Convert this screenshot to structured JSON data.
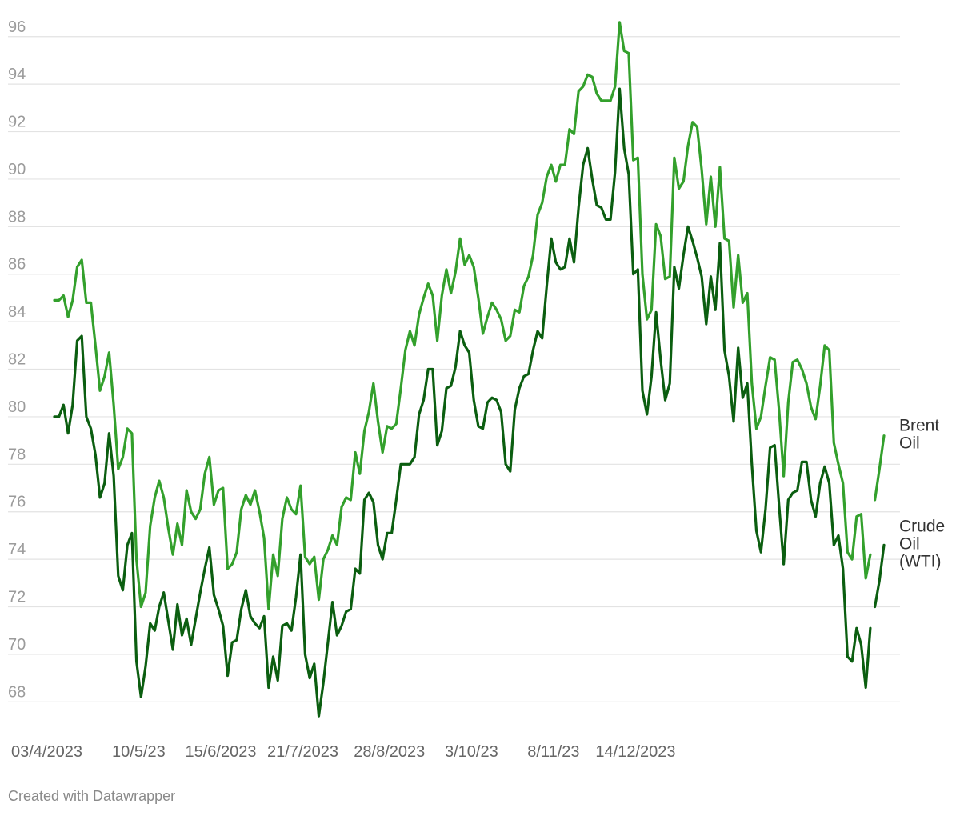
{
  "chart_data": {
    "type": "line",
    "title": "",
    "xlabel": "",
    "ylabel": "",
    "ylim": [
      67,
      96.8
    ],
    "y_ticks": [
      68,
      70,
      72,
      74,
      76,
      78,
      80,
      82,
      84,
      86,
      88,
      90,
      92,
      94,
      96
    ],
    "x_range": [
      "2023-04-03",
      "2024-04-01"
    ],
    "x_ticks": [
      {
        "date": "2023-04-03",
        "label": "03/4/2023"
      },
      {
        "date": "2023-05-10",
        "label": "10/5/23"
      },
      {
        "date": "2023-06-15",
        "label": "15/6/2023"
      },
      {
        "date": "2023-07-21",
        "label": "21/7/2023"
      },
      {
        "date": "2023-08-28",
        "label": "28/8/2023"
      },
      {
        "date": "2023-10-03",
        "label": "3/10/23"
      },
      {
        "date": "2023-11-08",
        "label": "8/11/23"
      },
      {
        "date": "2023-12-14",
        "label": "14/12/2023"
      }
    ],
    "grid": true,
    "legend": "inline labels at line ends (right)",
    "series": [
      {
        "name": "Brent Oil",
        "label_lines": [
          "Brent",
          "Oil"
        ],
        "color": "#33a02c",
        "points": [
          [
            "2023-04-03",
            84.9
          ],
          [
            "2023-04-05",
            84.9
          ],
          [
            "2023-04-07",
            85.1
          ],
          [
            "2023-04-09",
            84.2
          ],
          [
            "2023-04-11",
            84.9
          ],
          [
            "2023-04-13",
            86.3
          ],
          [
            "2023-04-15",
            86.6
          ],
          [
            "2023-04-17",
            84.8
          ],
          [
            "2023-04-19",
            84.8
          ],
          [
            "2023-04-21",
            83.0
          ],
          [
            "2023-04-23",
            81.1
          ],
          [
            "2023-04-25",
            81.7
          ],
          [
            "2023-04-27",
            82.7
          ],
          [
            "2023-04-29",
            80.5
          ],
          [
            "2023-05-01",
            77.8
          ],
          [
            "2023-05-03",
            78.3
          ],
          [
            "2023-05-05",
            79.5
          ],
          [
            "2023-05-07",
            79.3
          ],
          [
            "2023-05-09",
            74.0
          ],
          [
            "2023-05-11",
            72.0
          ],
          [
            "2023-05-13",
            72.6
          ],
          [
            "2023-05-15",
            75.4
          ],
          [
            "2023-05-17",
            76.6
          ],
          [
            "2023-05-19",
            77.3
          ],
          [
            "2023-05-21",
            76.6
          ],
          [
            "2023-05-23",
            75.3
          ],
          [
            "2023-05-25",
            74.2
          ],
          [
            "2023-05-27",
            75.5
          ],
          [
            "2023-05-29",
            74.6
          ],
          [
            "2023-05-31",
            76.9
          ],
          [
            "2023-06-02",
            76.0
          ],
          [
            "2023-06-04",
            75.7
          ],
          [
            "2023-06-06",
            76.1
          ],
          [
            "2023-06-08",
            77.6
          ],
          [
            "2023-06-10",
            78.3
          ],
          [
            "2023-06-12",
            76.3
          ],
          [
            "2023-06-14",
            76.9
          ],
          [
            "2023-06-16",
            77.0
          ],
          [
            "2023-06-18",
            73.6
          ],
          [
            "2023-06-20",
            73.8
          ],
          [
            "2023-06-22",
            74.3
          ],
          [
            "2023-06-24",
            76.1
          ],
          [
            "2023-06-26",
            76.7
          ],
          [
            "2023-06-28",
            76.3
          ],
          [
            "2023-06-30",
            76.9
          ],
          [
            "2023-07-02",
            76.0
          ],
          [
            "2023-07-04",
            74.9
          ],
          [
            "2023-07-06",
            71.9
          ],
          [
            "2023-07-08",
            74.2
          ],
          [
            "2023-07-10",
            73.3
          ],
          [
            "2023-07-12",
            75.7
          ],
          [
            "2023-07-14",
            76.6
          ],
          [
            "2023-07-16",
            76.1
          ],
          [
            "2023-07-18",
            75.9
          ],
          [
            "2023-07-20",
            77.1
          ],
          [
            "2023-07-22",
            74.1
          ],
          [
            "2023-07-24",
            73.8
          ],
          [
            "2023-07-26",
            74.1
          ],
          [
            "2023-07-28",
            72.3
          ],
          [
            "2023-07-30",
            74.0
          ],
          [
            "2023-08-01",
            74.4
          ],
          [
            "2023-08-03",
            75.0
          ],
          [
            "2023-08-05",
            74.6
          ],
          [
            "2023-08-07",
            76.2
          ],
          [
            "2023-08-09",
            76.6
          ],
          [
            "2023-08-11",
            76.5
          ],
          [
            "2023-08-13",
            78.5
          ],
          [
            "2023-08-15",
            77.6
          ],
          [
            "2023-08-17",
            79.4
          ],
          [
            "2023-08-19",
            80.2
          ],
          [
            "2023-08-21",
            81.4
          ],
          [
            "2023-08-23",
            79.8
          ],
          [
            "2023-08-25",
            78.5
          ],
          [
            "2023-08-27",
            79.6
          ],
          [
            "2023-08-29",
            79.5
          ],
          [
            "2023-08-31",
            79.7
          ],
          [
            "2023-09-02",
            81.2
          ],
          [
            "2023-09-04",
            82.8
          ],
          [
            "2023-09-06",
            83.6
          ],
          [
            "2023-09-08",
            83.0
          ],
          [
            "2023-09-10",
            84.3
          ],
          [
            "2023-09-12",
            85.0
          ],
          [
            "2023-09-14",
            85.6
          ],
          [
            "2023-09-16",
            85.1
          ],
          [
            "2023-09-18",
            83.2
          ],
          [
            "2023-09-20",
            85.1
          ],
          [
            "2023-09-22",
            86.2
          ],
          [
            "2023-09-24",
            85.2
          ],
          [
            "2023-09-26",
            86.1
          ],
          [
            "2023-09-28",
            87.5
          ],
          [
            "2023-09-30",
            86.4
          ],
          [
            "2023-10-02",
            86.8
          ],
          [
            "2023-10-04",
            86.3
          ],
          [
            "2023-10-06",
            85.0
          ],
          [
            "2023-10-08",
            83.5
          ],
          [
            "2023-10-10",
            84.2
          ],
          [
            "2023-10-12",
            84.8
          ],
          [
            "2023-10-14",
            84.5
          ],
          [
            "2023-10-16",
            84.1
          ],
          [
            "2023-10-18",
            83.2
          ],
          [
            "2023-10-20",
            83.4
          ],
          [
            "2023-10-22",
            84.5
          ],
          [
            "2023-10-24",
            84.4
          ],
          [
            "2023-10-26",
            85.5
          ],
          [
            "2023-10-28",
            85.9
          ],
          [
            "2023-10-30",
            86.8
          ],
          [
            "2023-11-01",
            88.5
          ],
          [
            "2023-11-03",
            89.0
          ],
          [
            "2023-11-05",
            90.1
          ],
          [
            "2023-11-07",
            90.6
          ],
          [
            "2023-11-09",
            89.9
          ],
          [
            "2023-11-11",
            90.6
          ],
          [
            "2023-11-13",
            90.6
          ],
          [
            "2023-11-15",
            92.1
          ],
          [
            "2023-11-17",
            91.9
          ],
          [
            "2023-11-19",
            93.7
          ],
          [
            "2023-11-21",
            93.9
          ],
          [
            "2023-11-23",
            94.4
          ],
          [
            "2023-11-25",
            94.3
          ],
          [
            "2023-11-27",
            93.6
          ],
          [
            "2023-11-29",
            93.3
          ],
          [
            "2023-12-01",
            93.3
          ],
          [
            "2023-12-03",
            93.3
          ],
          [
            "2023-12-05",
            93.9
          ],
          [
            "2023-12-07",
            96.6
          ],
          [
            "2023-12-09",
            95.4
          ],
          [
            "2023-12-11",
            95.3
          ],
          [
            "2023-12-13",
            90.8
          ],
          [
            "2023-12-15",
            90.9
          ],
          [
            "2023-12-17",
            86.0
          ],
          [
            "2023-12-19",
            84.1
          ],
          [
            "2023-12-21",
            84.5
          ],
          [
            "2023-12-23",
            88.1
          ],
          [
            "2023-12-25",
            87.6
          ],
          [
            "2023-12-27",
            85.8
          ],
          [
            "2023-12-29",
            85.9
          ],
          [
            "2023-12-31",
            90.9
          ],
          [
            "2024-01-02",
            89.6
          ],
          [
            "2024-01-04",
            89.9
          ],
          [
            "2024-01-06",
            91.4
          ],
          [
            "2024-01-08",
            92.4
          ],
          [
            "2024-01-10",
            92.2
          ],
          [
            "2024-01-12",
            90.4
          ],
          [
            "2024-01-14",
            88.1
          ],
          [
            "2024-01-16",
            90.1
          ],
          [
            "2024-01-18",
            88.0
          ],
          [
            "2024-01-20",
            90.5
          ],
          [
            "2024-01-22",
            87.5
          ],
          [
            "2024-01-24",
            87.4
          ],
          [
            "2024-01-26",
            84.6
          ],
          [
            "2024-01-28",
            86.8
          ],
          [
            "2024-01-30",
            84.8
          ],
          [
            "2024-02-01",
            85.2
          ],
          [
            "2024-02-03",
            81.4
          ],
          [
            "2024-02-05",
            79.5
          ],
          [
            "2024-02-07",
            80.0
          ],
          [
            "2024-02-09",
            81.3
          ],
          [
            "2024-02-11",
            82.5
          ],
          [
            "2024-02-13",
            82.4
          ],
          [
            "2024-02-15",
            80.2
          ],
          [
            "2024-02-17",
            77.5
          ],
          [
            "2024-02-19",
            80.6
          ],
          [
            "2024-02-21",
            82.3
          ],
          [
            "2024-02-23",
            82.4
          ],
          [
            "2024-02-25",
            82.0
          ],
          [
            "2024-02-27",
            81.4
          ],
          [
            "2024-02-29",
            80.4
          ],
          [
            "2024-03-02",
            79.9
          ],
          [
            "2024-03-04",
            81.3
          ],
          [
            "2024-03-06",
            83.0
          ],
          [
            "2024-03-08",
            82.8
          ],
          [
            "2024-03-10",
            78.9
          ],
          [
            "2024-03-12",
            78.0
          ],
          [
            "2024-03-14",
            77.2
          ],
          [
            "2024-03-16",
            74.3
          ],
          [
            "2024-03-18",
            74.0
          ],
          [
            "2024-03-20",
            75.8
          ],
          [
            "2024-03-22",
            75.9
          ],
          [
            "2024-03-24",
            73.2
          ],
          [
            "2024-03-26",
            74.2
          ],
          null,
          [
            "2024-03-28",
            76.5
          ],
          [
            "2024-03-30",
            77.8
          ],
          [
            "2024-04-01",
            79.2
          ]
        ]
      },
      {
        "name": "Crude Oil (WTI)",
        "label_lines": [
          "Crude",
          "Oil",
          "(WTI)"
        ],
        "color": "#0b5e10",
        "points": []
      }
    ]
  },
  "footer": "Created with Datawrapper"
}
